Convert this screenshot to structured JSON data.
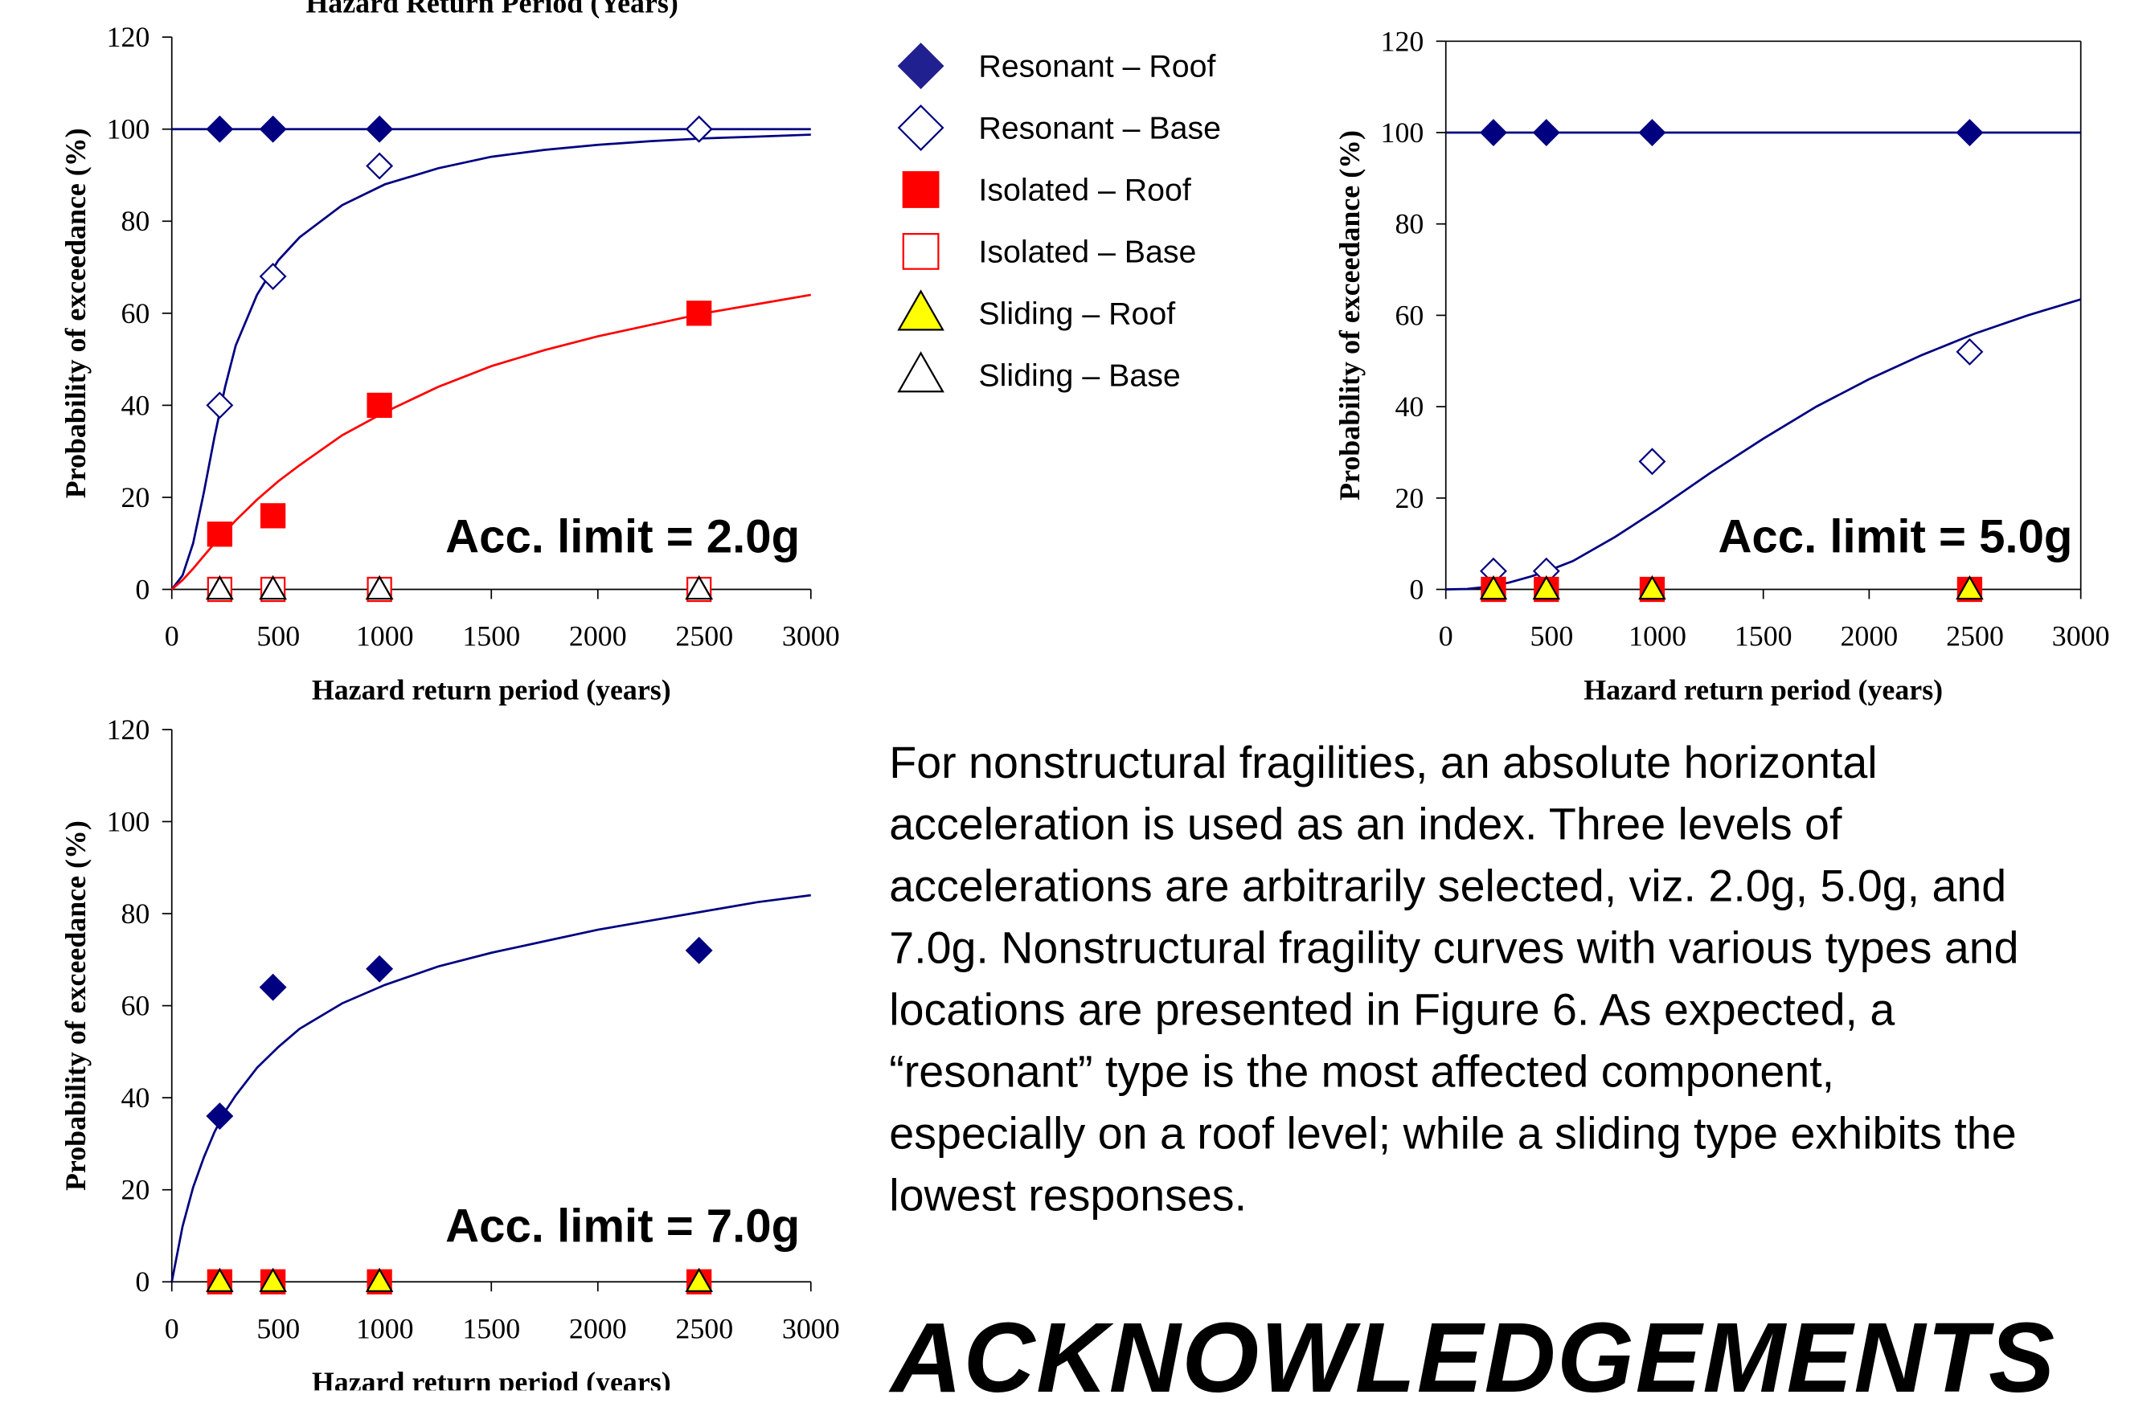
{
  "cut_title": "Hazard Return Period (Years)",
  "legend": [
    {
      "label": "Resonant – Roof",
      "marker": "diamond",
      "fill": "#202090",
      "stroke": "#202090"
    },
    {
      "label": "Resonant – Base",
      "marker": "diamond",
      "fill": "#ffffff",
      "stroke": "#000080"
    },
    {
      "label": "Isolated – Roof",
      "marker": "square",
      "fill": "#ff0000",
      "stroke": "#ff0000"
    },
    {
      "label": "Isolated – Base",
      "marker": "square",
      "fill": "#ffffff",
      "stroke": "#ff0000"
    },
    {
      "label": "Sliding – Roof",
      "marker": "triangle",
      "fill": "#ffff00",
      "stroke": "#000000"
    },
    {
      "label": "Sliding – Base",
      "marker": "triangle",
      "fill": "#ffffff",
      "stroke": "#000000"
    }
  ],
  "colors": {
    "resonant": "#000080",
    "isolated": "#ff0000",
    "sliding_fill": "#ffff00"
  },
  "chart_data": [
    {
      "type": "scatter",
      "annotation": "Acc. limit = 2.0g",
      "xlabel": "Hazard return period (years)",
      "ylabel": "Probability of exceedance (%)",
      "xlim": [
        0,
        3000
      ],
      "ylim": [
        0,
        120
      ],
      "xticks": [
        0,
        500,
        1000,
        1500,
        2000,
        2500,
        3000
      ],
      "yticks": [
        0,
        20,
        40,
        60,
        80,
        100,
        120
      ],
      "series": [
        {
          "name": "Resonant – Roof",
          "marker": "diamond-filled",
          "x": [
            225,
            475,
            975,
            2475
          ],
          "y": [
            100,
            100,
            100,
            100
          ]
        },
        {
          "name": "Resonant – Base",
          "marker": "diamond-open",
          "x": [
            225,
            475,
            975,
            2475
          ],
          "y": [
            40,
            68,
            92,
            100
          ]
        },
        {
          "name": "Isolated – Roof",
          "marker": "square-filled",
          "x": [
            225,
            475,
            975,
            2475
          ],
          "y": [
            12,
            16,
            40,
            60
          ]
        },
        {
          "name": "Isolated – Base",
          "marker": "square-open",
          "x": [
            225,
            475,
            975,
            2475
          ],
          "y": [
            0,
            0,
            0,
            0
          ]
        },
        {
          "name": "Sliding – Roof",
          "marker": "triangle-filled",
          "x": [
            225,
            475,
            975,
            2475
          ],
          "y": [
            0,
            0,
            0,
            0
          ]
        },
        {
          "name": "Sliding – Base",
          "marker": "triangle-open",
          "x": [
            225,
            475,
            975,
            2475
          ],
          "y": [
            0,
            0,
            0,
            0
          ]
        }
      ],
      "curves": [
        {
          "series": "Resonant – Roof",
          "color": "#000080",
          "x": [
            0,
            3000
          ],
          "y": [
            100,
            100
          ]
        },
        {
          "series": "Resonant – Base",
          "color": "#000080",
          "x": [
            0,
            50,
            100,
            150,
            200,
            250,
            300,
            400,
            500,
            600,
            800,
            1000,
            1250,
            1500,
            1750,
            2000,
            2250,
            2500,
            2750,
            3000
          ],
          "y": [
            0,
            3,
            10,
            21,
            33,
            44,
            53,
            64,
            71.5,
            76.5,
            83.5,
            88,
            91.5,
            94,
            95.5,
            96.6,
            97.4,
            98,
            98.4,
            98.8
          ]
        },
        {
          "series": "Isolated – Roof",
          "color": "#ff0000",
          "x": [
            0,
            50,
            100,
            200,
            300,
            400,
            500,
            600,
            800,
            1000,
            1250,
            1500,
            1750,
            2000,
            2250,
            2500,
            2750,
            3000
          ],
          "y": [
            0,
            2,
            4.5,
            10,
            15,
            19.5,
            23.5,
            27,
            33.5,
            38.5,
            44,
            48.5,
            52,
            55,
            57.5,
            60,
            62,
            64
          ]
        }
      ]
    },
    {
      "type": "scatter",
      "annotation": "Acc. limit = 5.0g",
      "xlabel": "Hazard return period (years)",
      "ylabel": "Probability of exceedance (%)",
      "xlim": [
        0,
        3000
      ],
      "ylim": [
        0,
        120
      ],
      "xticks": [
        0,
        500,
        1000,
        1500,
        2000,
        2500,
        3000
      ],
      "yticks": [
        0,
        20,
        40,
        60,
        80,
        100,
        120
      ],
      "series": [
        {
          "name": "Resonant – Roof",
          "marker": "diamond-filled",
          "x": [
            225,
            475,
            975,
            2475
          ],
          "y": [
            100,
            100,
            100,
            100
          ]
        },
        {
          "name": "Resonant – Base",
          "marker": "diamond-open",
          "x": [
            225,
            475,
            975,
            2475
          ],
          "y": [
            4,
            4,
            28,
            52
          ]
        },
        {
          "name": "Isolated – Roof",
          "marker": "square-filled",
          "x": [
            225,
            475,
            975,
            2475
          ],
          "y": [
            0,
            0,
            0,
            0
          ]
        },
        {
          "name": "Sliding – Roof",
          "marker": "triangle-filled",
          "x": [
            225,
            475,
            975,
            2475
          ],
          "y": [
            0,
            0,
            0,
            0
          ]
        }
      ],
      "curves": [
        {
          "series": "Resonant – Roof",
          "color": "#000080",
          "x": [
            0,
            3000
          ],
          "y": [
            100,
            100
          ]
        },
        {
          "series": "Resonant – Base",
          "color": "#000080",
          "x": [
            0,
            100,
            200,
            300,
            400,
            500,
            600,
            800,
            1000,
            1250,
            1500,
            1750,
            2000,
            2250,
            2500,
            2750,
            3000
          ],
          "y": [
            0,
            0.1,
            0.6,
            1.5,
            2.8,
            4.4,
            6.2,
            11.5,
            17.5,
            25.5,
            33,
            40,
            46,
            51.3,
            56,
            60,
            63.5
          ]
        }
      ]
    },
    {
      "type": "scatter",
      "annotation": "Acc. limit = 7.0g",
      "xlabel": "Hazard return period (years)",
      "ylabel": "Probability of exceedance (%)",
      "xlim": [
        0,
        3000
      ],
      "ylim": [
        0,
        120
      ],
      "xticks": [
        0,
        500,
        1000,
        1500,
        2000,
        2500,
        3000
      ],
      "yticks": [
        0,
        20,
        40,
        60,
        80,
        100,
        120
      ],
      "series": [
        {
          "name": "Resonant – Roof",
          "marker": "diamond-filled",
          "x": [
            225,
            475,
            975,
            2475
          ],
          "y": [
            36,
            64,
            68,
            72
          ]
        },
        {
          "name": "Isolated – Roof",
          "marker": "square-filled",
          "x": [
            225,
            475,
            975,
            2475
          ],
          "y": [
            0,
            0,
            0,
            0
          ]
        },
        {
          "name": "Sliding – Roof",
          "marker": "triangle-filled",
          "x": [
            225,
            475,
            975,
            2475
          ],
          "y": [
            0,
            0,
            0,
            0
          ]
        }
      ],
      "curves": [
        {
          "series": "Resonant – Roof",
          "color": "#000080",
          "x": [
            0,
            25,
            50,
            100,
            150,
            200,
            250,
            300,
            400,
            500,
            600,
            800,
            1000,
            1250,
            1500,
            1750,
            2000,
            2250,
            2500,
            2750,
            3000
          ],
          "y": [
            0,
            6,
            12,
            20.5,
            27,
            32.5,
            37,
            40.5,
            46.5,
            51,
            55,
            60.5,
            64.5,
            68.5,
            71.5,
            74,
            76.5,
            78.5,
            80.5,
            82.5,
            84
          ]
        }
      ]
    }
  ],
  "paragraph_lines": [
    "For nonstructural fragilities, an absolute horizontal",
    "acceleration is used as an index. Three levels of",
    "accelerations are arbitrarily selected, viz. 2.0g, 5.0g, and",
    "7.0g. Nonstructural fragility curves with various types and",
    "locations are presented in Figure 6. As expected, a",
    "“resonant” type is the most affected component,",
    "especially on a roof level; while a sliding type exhibits the",
    "lowest responses."
  ],
  "heading": "ACKNOWLEDGEMENTS"
}
